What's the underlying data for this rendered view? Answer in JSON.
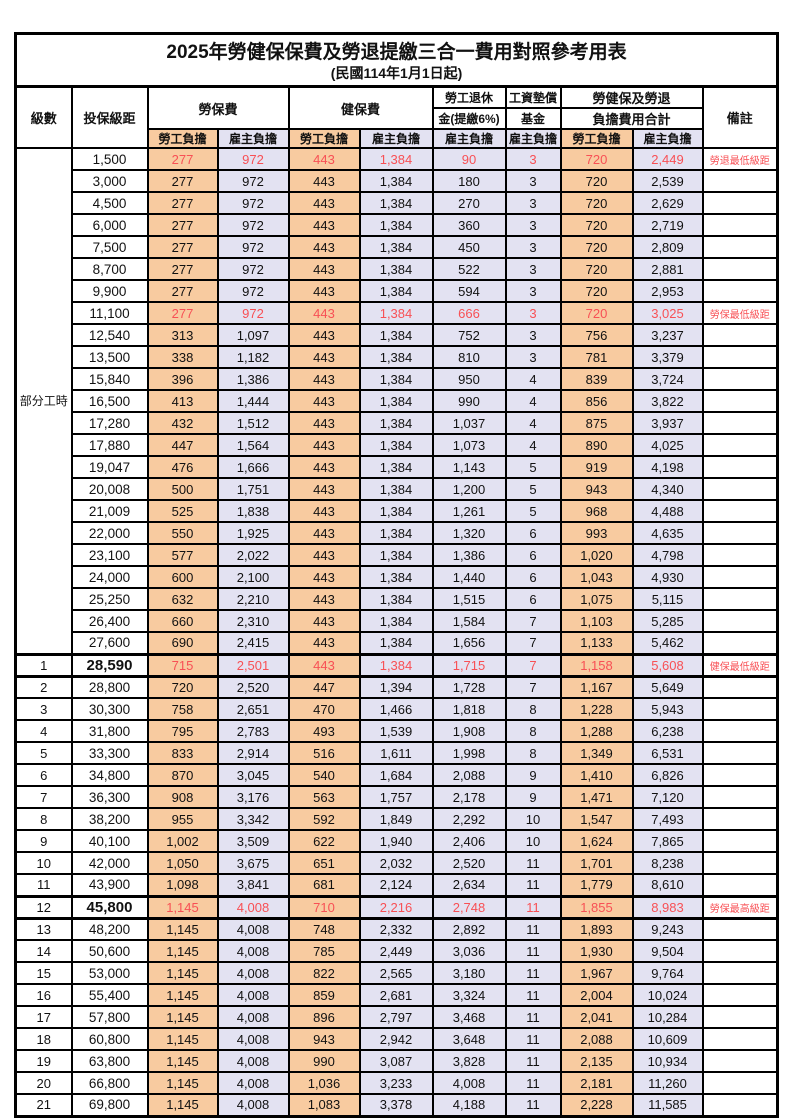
{
  "title": "2025年勞健保保費及勞退提繳三合一費用對照參考用表",
  "subtitle": "(民國114年1月1日起)",
  "colors": {
    "employee_column_bg": "#f8cba0",
    "employer_column_bg": "#e3e2f2",
    "highlight_text_red": "#f85055",
    "border_black": "#000000"
  },
  "header": {
    "level": "級數",
    "bracket": "投保級距",
    "labor_insurance": "勞保費",
    "health_insurance": "健保費",
    "pension_line1": "勞工退休",
    "pension_line2": "金(提繳6%)",
    "wage_fund_line1": "工資墊償",
    "wage_fund_line2": "基金",
    "total_line1": "勞健保及勞退",
    "total_line2": "負擔費用合計",
    "remark": "備註",
    "employee": "勞工負擔",
    "employer": "雇主負擔"
  },
  "part_time_label": "部分工時",
  "part_time_rowspan": 23,
  "rows": [
    {
      "level": "",
      "bracket": "1,500",
      "values": [
        "277",
        "972",
        "443",
        "1,384",
        "90",
        "3",
        "720",
        "2,449"
      ],
      "remark": "勞退最低級距",
      "red": true,
      "key": false
    },
    {
      "level": "",
      "bracket": "3,000",
      "values": [
        "277",
        "972",
        "443",
        "1,384",
        "180",
        "3",
        "720",
        "2,539"
      ],
      "remark": "",
      "red": false,
      "key": false
    },
    {
      "level": "",
      "bracket": "4,500",
      "values": [
        "277",
        "972",
        "443",
        "1,384",
        "270",
        "3",
        "720",
        "2,629"
      ],
      "remark": "",
      "red": false,
      "key": false
    },
    {
      "level": "",
      "bracket": "6,000",
      "values": [
        "277",
        "972",
        "443",
        "1,384",
        "360",
        "3",
        "720",
        "2,719"
      ],
      "remark": "",
      "red": false,
      "key": false
    },
    {
      "level": "",
      "bracket": "7,500",
      "values": [
        "277",
        "972",
        "443",
        "1,384",
        "450",
        "3",
        "720",
        "2,809"
      ],
      "remark": "",
      "red": false,
      "key": false
    },
    {
      "level": "",
      "bracket": "8,700",
      "values": [
        "277",
        "972",
        "443",
        "1,384",
        "522",
        "3",
        "720",
        "2,881"
      ],
      "remark": "",
      "red": false,
      "key": false
    },
    {
      "level": "",
      "bracket": "9,900",
      "values": [
        "277",
        "972",
        "443",
        "1,384",
        "594",
        "3",
        "720",
        "2,953"
      ],
      "remark": "",
      "red": false,
      "key": false
    },
    {
      "level": "",
      "bracket": "11,100",
      "values": [
        "277",
        "972",
        "443",
        "1,384",
        "666",
        "3",
        "720",
        "3,025"
      ],
      "remark": "勞保最低級距",
      "red": true,
      "key": false
    },
    {
      "level": "",
      "bracket": "12,540",
      "values": [
        "313",
        "1,097",
        "443",
        "1,384",
        "752",
        "3",
        "756",
        "3,237"
      ],
      "remark": "",
      "red": false,
      "key": false
    },
    {
      "level": "",
      "bracket": "13,500",
      "values": [
        "338",
        "1,182",
        "443",
        "1,384",
        "810",
        "3",
        "781",
        "3,379"
      ],
      "remark": "",
      "red": false,
      "key": false
    },
    {
      "level": "",
      "bracket": "15,840",
      "values": [
        "396",
        "1,386",
        "443",
        "1,384",
        "950",
        "4",
        "839",
        "3,724"
      ],
      "remark": "",
      "red": false,
      "key": false
    },
    {
      "level": "",
      "bracket": "16,500",
      "values": [
        "413",
        "1,444",
        "443",
        "1,384",
        "990",
        "4",
        "856",
        "3,822"
      ],
      "remark": "",
      "red": false,
      "key": false
    },
    {
      "level": "",
      "bracket": "17,280",
      "values": [
        "432",
        "1,512",
        "443",
        "1,384",
        "1,037",
        "4",
        "875",
        "3,937"
      ],
      "remark": "",
      "red": false,
      "key": false
    },
    {
      "level": "",
      "bracket": "17,880",
      "values": [
        "447",
        "1,564",
        "443",
        "1,384",
        "1,073",
        "4",
        "890",
        "4,025"
      ],
      "remark": "",
      "red": false,
      "key": false
    },
    {
      "level": "",
      "bracket": "19,047",
      "values": [
        "476",
        "1,666",
        "443",
        "1,384",
        "1,143",
        "5",
        "919",
        "4,198"
      ],
      "remark": "",
      "red": false,
      "key": false
    },
    {
      "level": "",
      "bracket": "20,008",
      "values": [
        "500",
        "1,751",
        "443",
        "1,384",
        "1,200",
        "5",
        "943",
        "4,340"
      ],
      "remark": "",
      "red": false,
      "key": false
    },
    {
      "level": "",
      "bracket": "21,009",
      "values": [
        "525",
        "1,838",
        "443",
        "1,384",
        "1,261",
        "5",
        "968",
        "4,488"
      ],
      "remark": "",
      "red": false,
      "key": false
    },
    {
      "level": "",
      "bracket": "22,000",
      "values": [
        "550",
        "1,925",
        "443",
        "1,384",
        "1,320",
        "6",
        "993",
        "4,635"
      ],
      "remark": "",
      "red": false,
      "key": false
    },
    {
      "level": "",
      "bracket": "23,100",
      "values": [
        "577",
        "2,022",
        "443",
        "1,384",
        "1,386",
        "6",
        "1,020",
        "4,798"
      ],
      "remark": "",
      "red": false,
      "key": false
    },
    {
      "level": "",
      "bracket": "24,000",
      "values": [
        "600",
        "2,100",
        "443",
        "1,384",
        "1,440",
        "6",
        "1,043",
        "4,930"
      ],
      "remark": "",
      "red": false,
      "key": false
    },
    {
      "level": "",
      "bracket": "25,250",
      "values": [
        "632",
        "2,210",
        "443",
        "1,384",
        "1,515",
        "6",
        "1,075",
        "5,115"
      ],
      "remark": "",
      "red": false,
      "key": false
    },
    {
      "level": "",
      "bracket": "26,400",
      "values": [
        "660",
        "2,310",
        "443",
        "1,384",
        "1,584",
        "7",
        "1,103",
        "5,285"
      ],
      "remark": "",
      "red": false,
      "key": false
    },
    {
      "level": "",
      "bracket": "27,600",
      "values": [
        "690",
        "2,415",
        "443",
        "1,384",
        "1,656",
        "7",
        "1,133",
        "5,462"
      ],
      "remark": "",
      "red": false,
      "key": false
    },
    {
      "level": "1",
      "bracket": "28,590",
      "values": [
        "715",
        "2,501",
        "443",
        "1,384",
        "1,715",
        "7",
        "1,158",
        "5,608"
      ],
      "remark": "健保最低級距",
      "red": true,
      "key": true
    },
    {
      "level": "2",
      "bracket": "28,800",
      "values": [
        "720",
        "2,520",
        "447",
        "1,394",
        "1,728",
        "7",
        "1,167",
        "5,649"
      ],
      "remark": "",
      "red": false,
      "key": false
    },
    {
      "level": "3",
      "bracket": "30,300",
      "values": [
        "758",
        "2,651",
        "470",
        "1,466",
        "1,818",
        "8",
        "1,228",
        "5,943"
      ],
      "remark": "",
      "red": false,
      "key": false
    },
    {
      "level": "4",
      "bracket": "31,800",
      "values": [
        "795",
        "2,783",
        "493",
        "1,539",
        "1,908",
        "8",
        "1,288",
        "6,238"
      ],
      "remark": "",
      "red": false,
      "key": false
    },
    {
      "level": "5",
      "bracket": "33,300",
      "values": [
        "833",
        "2,914",
        "516",
        "1,611",
        "1,998",
        "8",
        "1,349",
        "6,531"
      ],
      "remark": "",
      "red": false,
      "key": false
    },
    {
      "level": "6",
      "bracket": "34,800",
      "values": [
        "870",
        "3,045",
        "540",
        "1,684",
        "2,088",
        "9",
        "1,410",
        "6,826"
      ],
      "remark": "",
      "red": false,
      "key": false
    },
    {
      "level": "7",
      "bracket": "36,300",
      "values": [
        "908",
        "3,176",
        "563",
        "1,757",
        "2,178",
        "9",
        "1,471",
        "7,120"
      ],
      "remark": "",
      "red": false,
      "key": false
    },
    {
      "level": "8",
      "bracket": "38,200",
      "values": [
        "955",
        "3,342",
        "592",
        "1,849",
        "2,292",
        "10",
        "1,547",
        "7,493"
      ],
      "remark": "",
      "red": false,
      "key": false
    },
    {
      "level": "9",
      "bracket": "40,100",
      "values": [
        "1,002",
        "3,509",
        "622",
        "1,940",
        "2,406",
        "10",
        "1,624",
        "7,865"
      ],
      "remark": "",
      "red": false,
      "key": false
    },
    {
      "level": "10",
      "bracket": "42,000",
      "values": [
        "1,050",
        "3,675",
        "651",
        "2,032",
        "2,520",
        "11",
        "1,701",
        "8,238"
      ],
      "remark": "",
      "red": false,
      "key": false
    },
    {
      "level": "11",
      "bracket": "43,900",
      "values": [
        "1,098",
        "3,841",
        "681",
        "2,124",
        "2,634",
        "11",
        "1,779",
        "8,610"
      ],
      "remark": "",
      "red": false,
      "key": false
    },
    {
      "level": "12",
      "bracket": "45,800",
      "values": [
        "1,145",
        "4,008",
        "710",
        "2,216",
        "2,748",
        "11",
        "1,855",
        "8,983"
      ],
      "remark": "勞保最高級距",
      "red": true,
      "key": true
    },
    {
      "level": "13",
      "bracket": "48,200",
      "values": [
        "1,145",
        "4,008",
        "748",
        "2,332",
        "2,892",
        "11",
        "1,893",
        "9,243"
      ],
      "remark": "",
      "red": false,
      "key": false
    },
    {
      "level": "14",
      "bracket": "50,600",
      "values": [
        "1,145",
        "4,008",
        "785",
        "2,449",
        "3,036",
        "11",
        "1,930",
        "9,504"
      ],
      "remark": "",
      "red": false,
      "key": false
    },
    {
      "level": "15",
      "bracket": "53,000",
      "values": [
        "1,145",
        "4,008",
        "822",
        "2,565",
        "3,180",
        "11",
        "1,967",
        "9,764"
      ],
      "remark": "",
      "red": false,
      "key": false
    },
    {
      "level": "16",
      "bracket": "55,400",
      "values": [
        "1,145",
        "4,008",
        "859",
        "2,681",
        "3,324",
        "11",
        "2,004",
        "10,024"
      ],
      "remark": "",
      "red": false,
      "key": false
    },
    {
      "level": "17",
      "bracket": "57,800",
      "values": [
        "1,145",
        "4,008",
        "896",
        "2,797",
        "3,468",
        "11",
        "2,041",
        "10,284"
      ],
      "remark": "",
      "red": false,
      "key": false
    },
    {
      "level": "18",
      "bracket": "60,800",
      "values": [
        "1,145",
        "4,008",
        "943",
        "2,942",
        "3,648",
        "11",
        "2,088",
        "10,609"
      ],
      "remark": "",
      "red": false,
      "key": false
    },
    {
      "level": "19",
      "bracket": "63,800",
      "values": [
        "1,145",
        "4,008",
        "990",
        "3,087",
        "3,828",
        "11",
        "2,135",
        "10,934"
      ],
      "remark": "",
      "red": false,
      "key": false
    },
    {
      "level": "20",
      "bracket": "66,800",
      "values": [
        "1,145",
        "4,008",
        "1,036",
        "3,233",
        "4,008",
        "11",
        "2,181",
        "11,260"
      ],
      "remark": "",
      "red": false,
      "key": false
    },
    {
      "level": "21",
      "bracket": "69,800",
      "values": [
        "1,145",
        "4,008",
        "1,083",
        "3,378",
        "4,188",
        "11",
        "2,228",
        "11,585"
      ],
      "remark": "",
      "red": false,
      "key": false
    }
  ],
  "value_cell_names": [
    "cell-labor-employee",
    "cell-labor-employer",
    "cell-health-employee",
    "cell-health-employer",
    "cell-pension-employer",
    "cell-wage-fund-employer",
    "cell-total-employee",
    "cell-total-employer"
  ]
}
